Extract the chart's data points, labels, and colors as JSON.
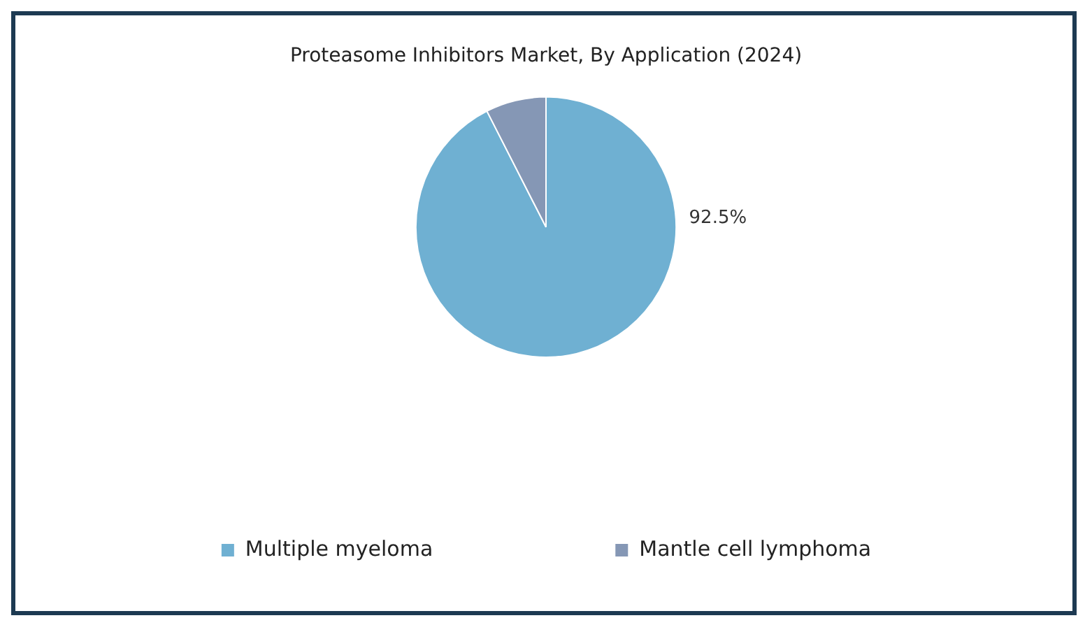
{
  "chart_data": {
    "type": "pie",
    "title": "Proteasome Inhibitors Market, By Application (2024)",
    "categories": [
      "Multiple myeloma",
      "Mantle cell lymphoma"
    ],
    "values": [
      92.5,
      7.5
    ],
    "colors": [
      "#6fb0d2",
      "#8597b5"
    ],
    "value_labels": [
      "92.5%",
      null
    ],
    "legend": "bottom"
  }
}
